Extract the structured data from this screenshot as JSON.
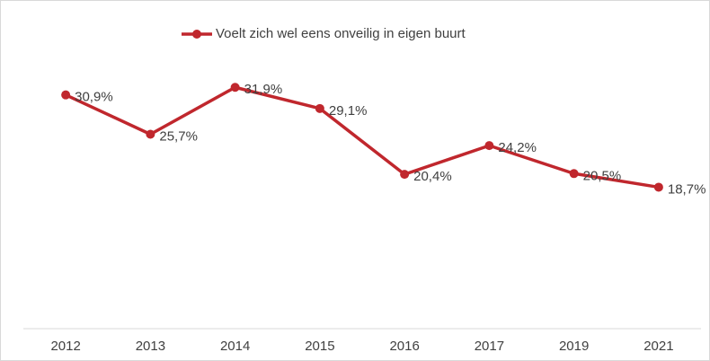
{
  "chart_data": {
    "type": "line",
    "categories": [
      "2012",
      "2013",
      "2014",
      "2015",
      "2016",
      "2017",
      "2019",
      "2021"
    ],
    "series": [
      {
        "name": "Voelt zich wel eens onveilig in eigen buurt",
        "color": "#c0272d",
        "values": [
          30.9,
          25.7,
          31.9,
          29.1,
          20.4,
          24.2,
          20.5,
          18.7
        ],
        "value_labels": [
          "30,9%",
          "25,7%",
          "31,9%",
          "29,1%",
          "20,4%",
          "24,2%",
          "20,5%",
          "18,7%"
        ]
      }
    ],
    "ylim": [
      0,
      40
    ],
    "legend": "top"
  }
}
